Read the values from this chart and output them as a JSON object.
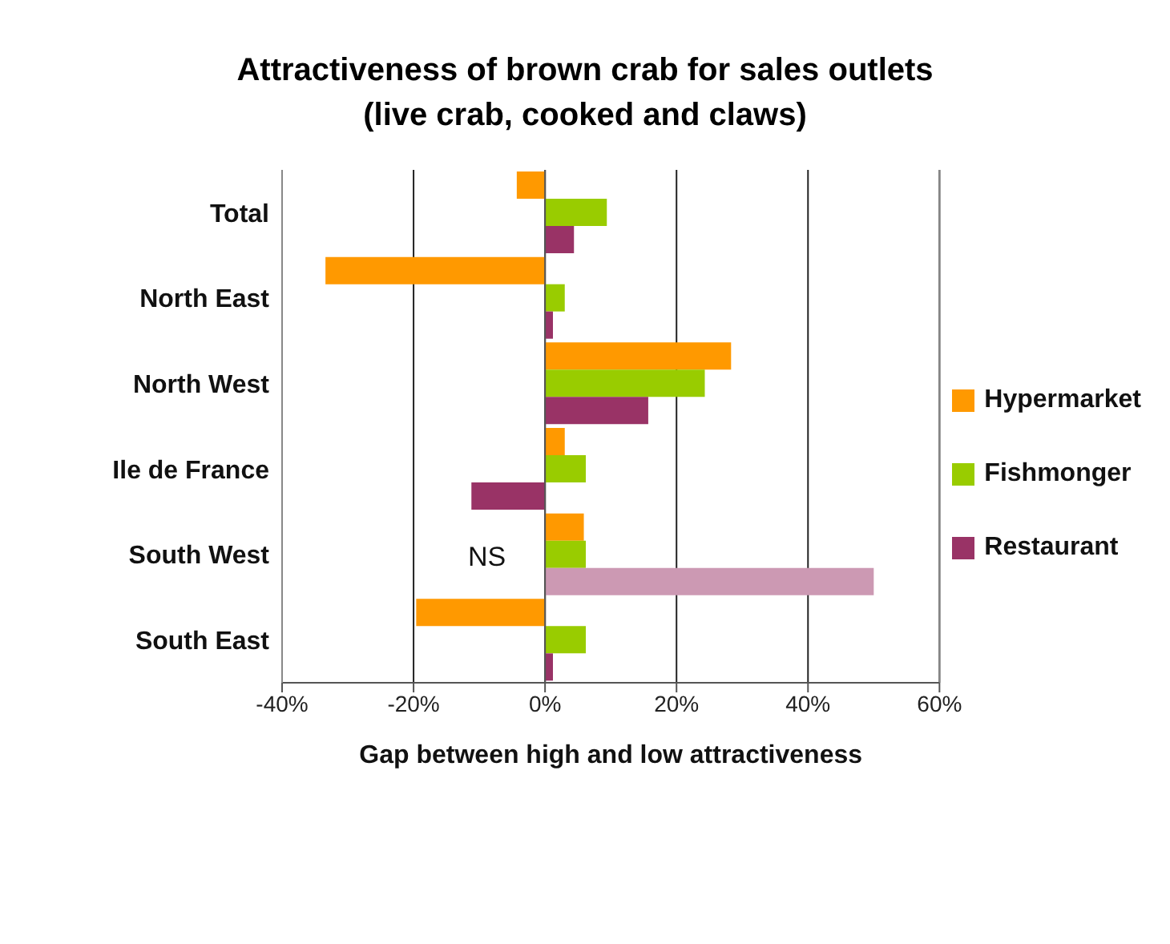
{
  "chart_data": {
    "type": "bar",
    "orientation": "horizontal",
    "title": "Attractiveness of brown crab for sales outlets\n(live crab, cooked and claws)",
    "xlabel": "Gap between high and low attractiveness",
    "categories": [
      "Total",
      "North East",
      "North West",
      "Ile de France",
      "South West",
      "South East"
    ],
    "series": [
      {
        "name": "Hypermarket",
        "color": "#ff9900",
        "values": [
          -4.3,
          -33.4,
          28.3,
          3,
          5.9,
          -19.6
        ]
      },
      {
        "name": "Fishmonger",
        "color": "#99cc00",
        "values": [
          9.4,
          3,
          24.3,
          6.2,
          6.2,
          6.2
        ]
      },
      {
        "name": "Restaurant",
        "color": "#993366",
        "colors": [
          "#993366",
          "#993366",
          "#993366",
          "#993366",
          "#cc99b3",
          "#993366"
        ],
        "values": [
          4.4,
          1.2,
          15.7,
          -11.2,
          50,
          1.2
        ]
      }
    ],
    "xlim": [
      -40,
      60
    ],
    "xticks": [
      {
        "value": -40,
        "label": "-40%"
      },
      {
        "value": -20,
        "label": "-20%"
      },
      {
        "value": 0,
        "label": "0%"
      },
      {
        "value": 20,
        "label": "20%"
      },
      {
        "value": 40,
        "label": "40%"
      },
      {
        "value": 60,
        "label": "60%"
      }
    ],
    "grid": "x",
    "legend": "right",
    "annotations": [
      "NS"
    ]
  }
}
